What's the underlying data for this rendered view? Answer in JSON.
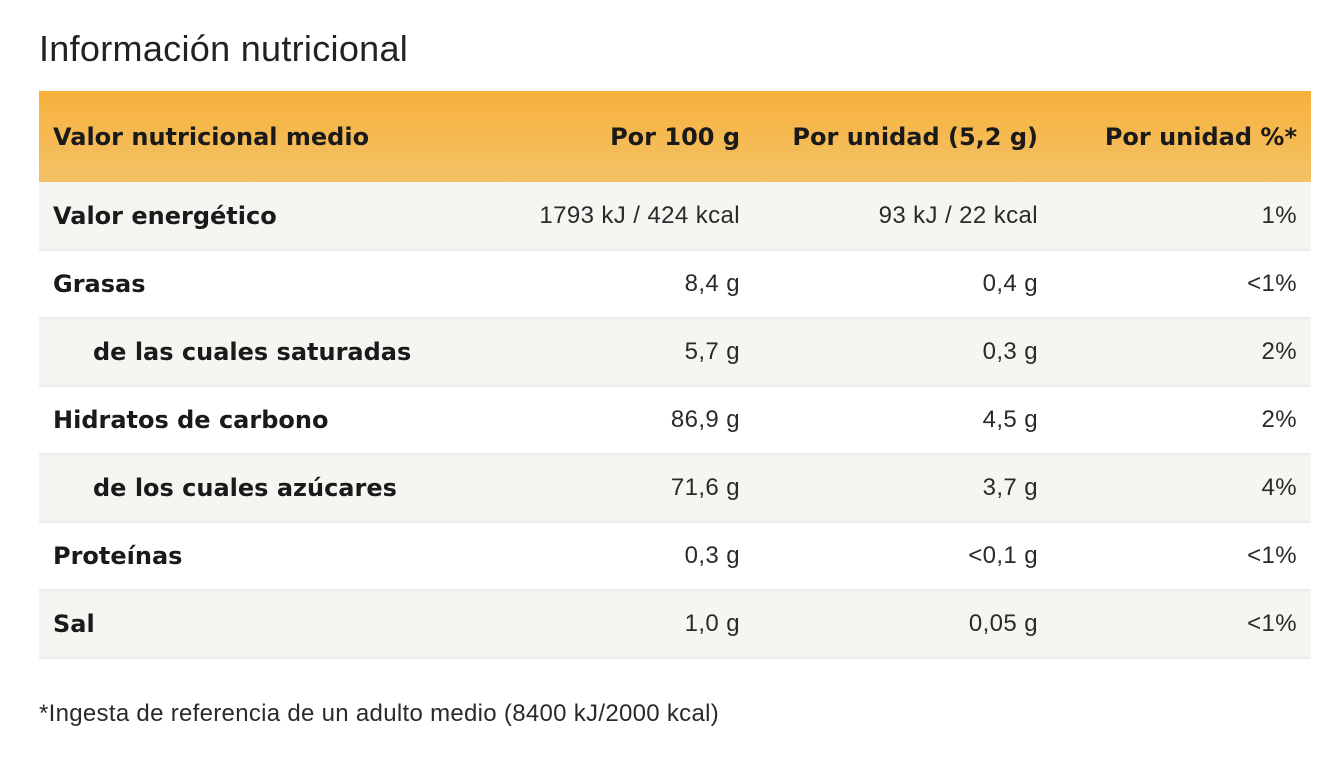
{
  "title": "Información nutricional",
  "table": {
    "headers": [
      "Valor nutricional medio",
      "Por 100 g",
      "Por unidad (5,2 g)",
      "Por unidad %*"
    ],
    "rows": [
      {
        "name": "Valor energético",
        "per100": "1793 kJ / 424 kcal",
        "perUnit": "93 kJ / 22 kcal",
        "pct": "1%"
      },
      {
        "name": "Grasas",
        "per100": "8,4 g",
        "perUnit": "0,4 g",
        "pct": "<1%"
      },
      {
        "name": "de las cuales saturadas",
        "per100": "5,7 g",
        "perUnit": "0,3 g",
        "pct": "2%"
      },
      {
        "name": "Hidratos de carbono",
        "per100": "86,9 g",
        "perUnit": "4,5 g",
        "pct": "2%"
      },
      {
        "name": "de los cuales azúcares",
        "per100": "71,6 g",
        "perUnit": "3,7 g",
        "pct": "4%"
      },
      {
        "name": "Proteínas",
        "per100": "0,3 g",
        "perUnit": "<0,1 g",
        "pct": "<1%"
      },
      {
        "name": "Sal",
        "per100": "1,0 g",
        "perUnit": "0,05 g",
        "pct": "<1%"
      }
    ]
  },
  "footnote": "*Ingesta de referencia de un adulto medio (8400 kJ/2000 kcal)",
  "colors": {
    "header_top": "#f7b13c",
    "header_bottom": "#f3c266",
    "row_shade": "#f6f5f2"
  }
}
